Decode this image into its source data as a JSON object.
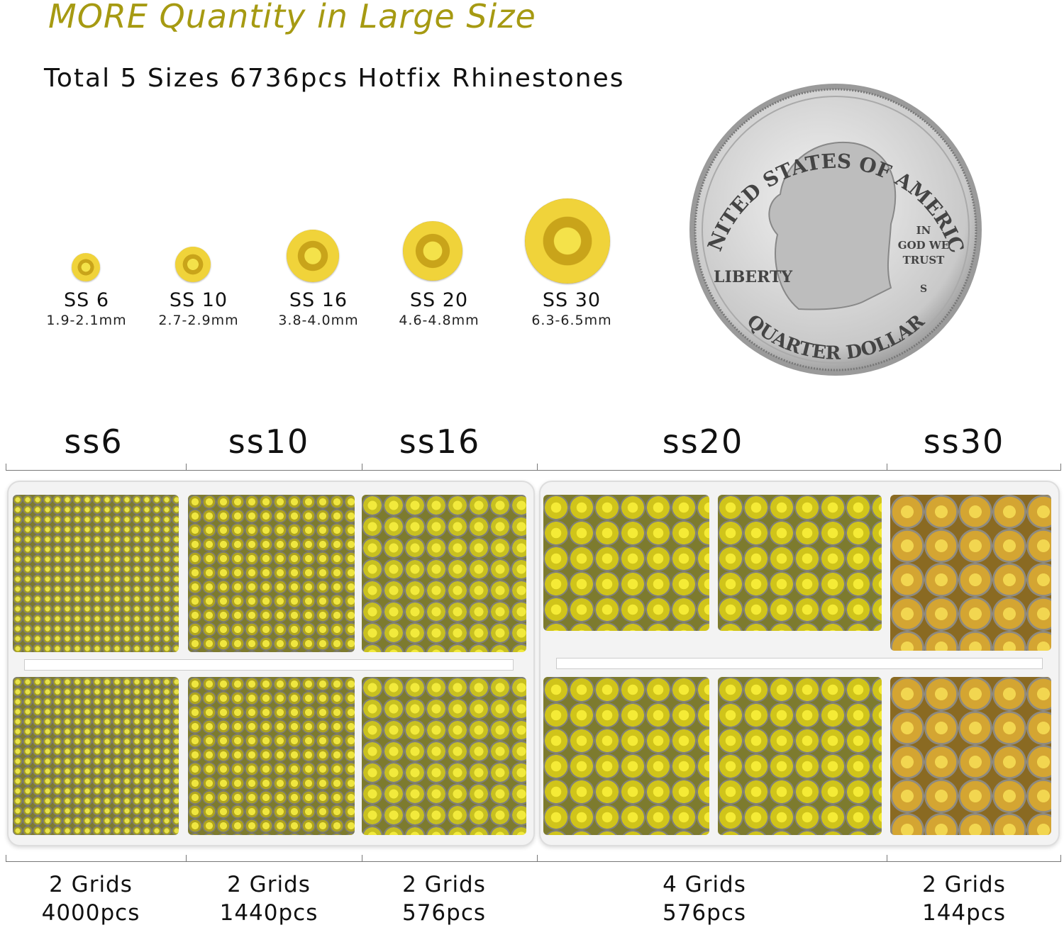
{
  "headline": "MORE Quantity in Large Size",
  "subheadline": "Total 5 Sizes 6736pcs Hotfix Rhinestones",
  "accent_color": "#a69a12",
  "gem_color": "#e8dc3a",
  "sizes": [
    {
      "name": "SS 6",
      "mm": "1.9-2.1mm"
    },
    {
      "name": "SS 10",
      "mm": "2.7-2.9mm"
    },
    {
      "name": "SS 16",
      "mm": "3.8-4.0mm"
    },
    {
      "name": "SS 20",
      "mm": "4.6-4.8mm"
    },
    {
      "name": "SS 30",
      "mm": "6.3-6.5mm"
    }
  ],
  "coin": {
    "top": "UNITED STATES OF AMERICA",
    "motto": [
      "IN",
      "GOD WE",
      "TRUST"
    ],
    "liberty": "LIBERTY",
    "mint": "S",
    "bottom": "QUARTER DOLLAR"
  },
  "columns": [
    {
      "label": "ss6",
      "grids": "2 Grids",
      "pcs": "4000pcs"
    },
    {
      "label": "ss10",
      "grids": "2 Grids",
      "pcs": "1440pcs"
    },
    {
      "label": "ss16",
      "grids": "2 Grids",
      "pcs": "576pcs"
    },
    {
      "label": "ss20",
      "grids": "4 Grids",
      "pcs": "576pcs"
    },
    {
      "label": "ss30",
      "grids": "2 Grids",
      "pcs": "144pcs"
    }
  ]
}
